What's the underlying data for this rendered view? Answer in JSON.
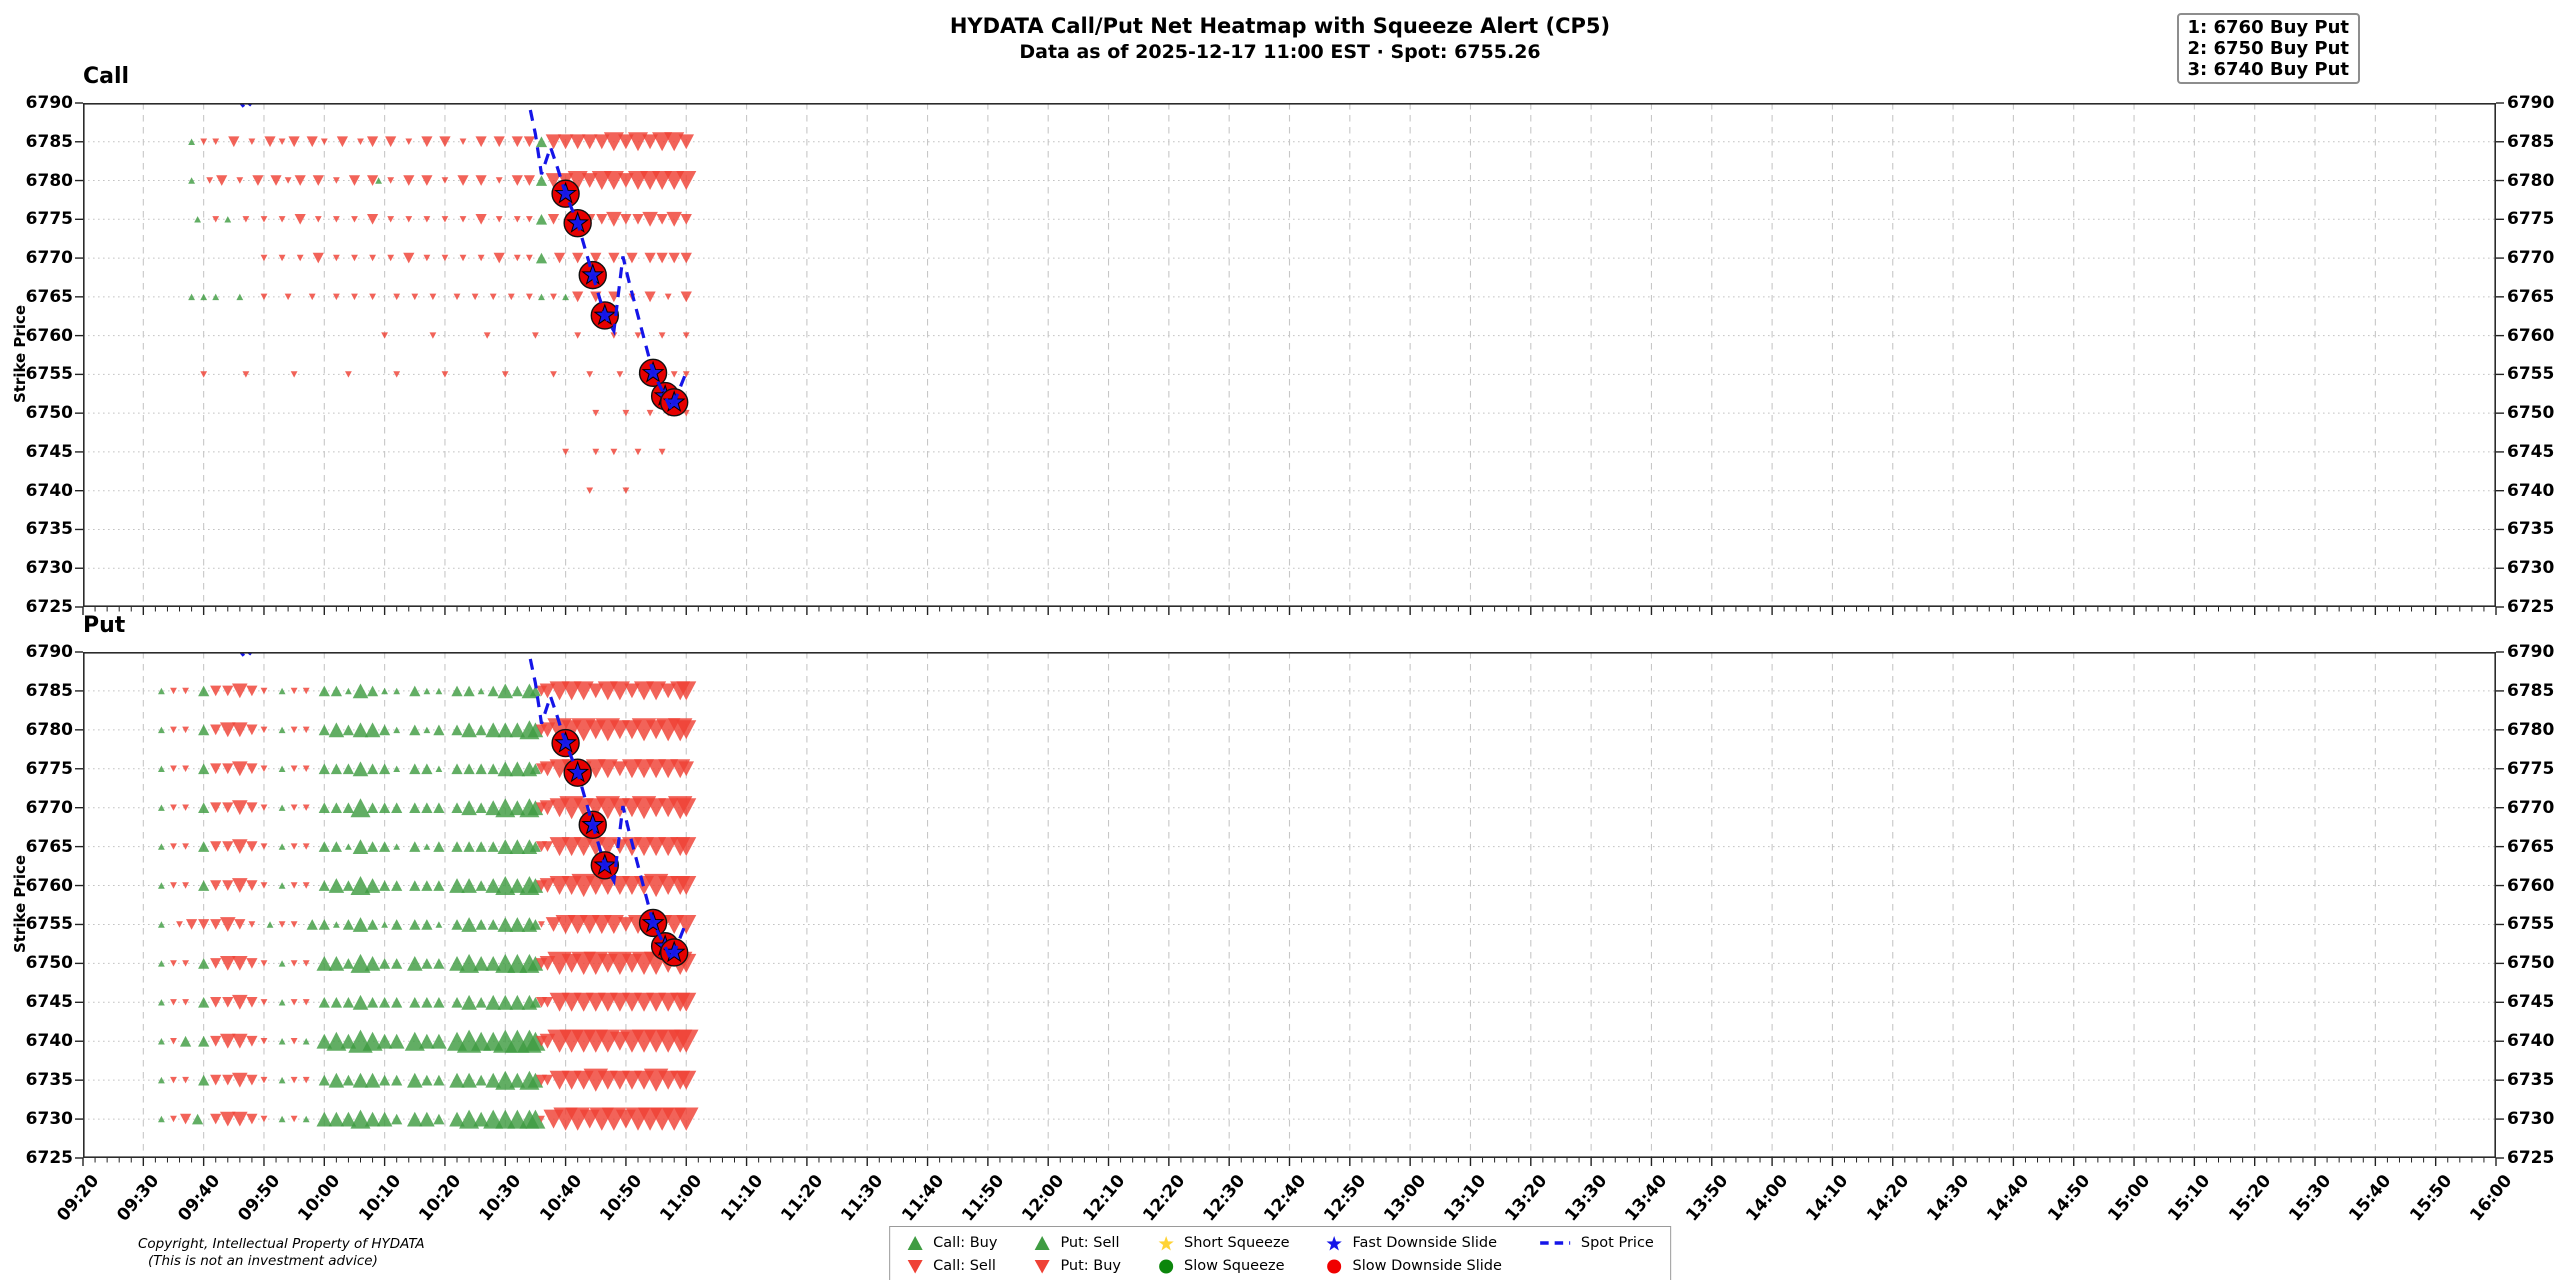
{
  "chart_data": {
    "type": "heatmap",
    "title_line1": "HYDATA Call/Put Net Heatmap with Squeeze Alert (CP5)",
    "title_line2": "Data as of 2025-12-17 11:00 EST · Spot: 6755.26",
    "alert_lines": [
      "1: 6760 Buy Put",
      "2: 6750 Buy Put",
      "3: 6740 Buy Put"
    ],
    "x_axis": {
      "start": "09:20",
      "end": "16:00",
      "major_step_min": 10,
      "minor_step_min": 2,
      "tick_labels": [
        "09:20",
        "09:30",
        "09:40",
        "09:50",
        "10:00",
        "10:10",
        "10:20",
        "10:30",
        "10:40",
        "10:50",
        "11:00",
        "11:10",
        "11:20",
        "11:30",
        "11:40",
        "11:50",
        "12:00",
        "12:10",
        "12:20",
        "12:30",
        "12:40",
        "12:50",
        "13:00",
        "13:10",
        "13:20",
        "13:30",
        "13:40",
        "13:50",
        "14:00",
        "14:10",
        "14:20",
        "14:30",
        "14:40",
        "14:50",
        "15:00",
        "15:10",
        "15:20",
        "15:30",
        "15:40",
        "15:50",
        "16:00"
      ]
    },
    "y_axis": {
      "label": "Strike Price",
      "min": 6725,
      "max": 6790,
      "tick_labels": [
        6790,
        6785,
        6780,
        6775,
        6770,
        6765,
        6760,
        6755,
        6750,
        6745,
        6740,
        6735,
        6730,
        6725
      ]
    },
    "time_unit": "minutes after 09:20",
    "marker_encoding": "minute:type:size — u = buy/accumulation green up-triangle, d = sell red down-triangle, size 1-5 relative",
    "panels": [
      {
        "title": "Call",
        "rows": [
          {
            "strike": 6785,
            "marks": "18:u:1,20:d:1,22:d:1,25:d:2,28:d:1,31:d:2,33:d:1,35:d:2,38:d:2,40:d:1,43:d:2,46:d:1,48:d:2,51:d:2,54:d:1,57:d:2,60:d:2,63:d:1,66:d:2,69:d:2,72:d:2,74:d:2,76:u:2,78:d:3,80:d:3,82:d:3,84:d:3,86:d:3,88:d:4,90:d:3,92:d:4,94:d:3,96:d:4,98:d:4,100:d:3"
          },
          {
            "strike": 6780,
            "marks": "18:u:1,21:d:1,23:d:2,26:d:1,29:d:2,32:d:2,34:d:1,36:d:2,39:d:2,42:d:1,45:d:2,48:d:2,49:u:1,51:d:1,54:d:2,57:d:2,60:d:1,63:d:2,66:d:2,69:d:1,72:d:2,74:d:2,76:u:2,78:d:3,80:d:3,82:d:4,84:d:3,86:d:4,88:d:4,90:d:3,92:d:4,94:d:4,96:d:4,98:d:4,100:d:4"
          },
          {
            "strike": 6775,
            "marks": "19:u:1,22:d:1,24:u:1,27:d:1,30:d:1,33:d:1,36:d:2,39:d:1,42:d:1,45:d:1,48:d:2,51:d:1,54:d:1,57:d:1,60:d:1,63:d:1,66:d:2,69:d:1,72:d:1,74:d:1,76:u:2,78:d:2,81:d:2,84:d:2,86:d:2,88:d:3,90:d:2,92:d:2,94:d:3,96:d:2,98:d:3,100:d:2"
          },
          {
            "strike": 6770,
            "marks": "30:d:1,33:d:1,36:d:1,39:d:2,42:d:1,45:d:1,48:d:1,51:d:1,54:d:2,57:d:1,60:d:1,63:d:1,66:d:1,69:d:2,72:d:1,74:d:1,76:u:2,79:d:2,82:d:2,85:d:2,88:d:2,91:d:2,94:d:2,96:d:2,98:d:2,100:d:2"
          },
          {
            "strike": 6765,
            "marks": "18:u:1,20:u:1,22:u:1,26:u:1,30:d:1,34:d:1,38:d:1,42:d:1,45:d:1,48:d:1,52:d:1,55:d:1,58:d:1,62:d:1,65:d:1,68:d:1,71:d:1,74:d:1,76:u:1,78:d:1,80:u:1,82:d:2,85:d:2,88:d:2,91:d:1,94:d:2,97:d:1,100:d:2"
          },
          {
            "strike": 6760,
            "marks": "50:d:1,58:d:1,67:d:1,75:d:1,82:d:1,88:d:1,92:d:1,96:d:1,100:d:1"
          },
          {
            "strike": 6755,
            "marks": "20:d:1,27:d:1,35:d:1,44:d:1,52:d:1,60:d:1,70:d:1,78:d:1,84:d:1,89:d:1,93:d:1,96:d:1,98:d:1,100:d:1"
          },
          {
            "strike": 6750,
            "marks": "85:d:1,90:d:1,94:d:1,97:d:1,100:d:1"
          },
          {
            "strike": 6745,
            "marks": "80:d:1,85:d:1,88:d:1,92:d:1,96:d:1"
          },
          {
            "strike": 6740,
            "marks": "84:d:1,90:d:1"
          }
        ]
      },
      {
        "title": "Put",
        "rows": [
          {
            "strike": 6785,
            "marks": "13:u:1,15:d:1,17:d:1,20:u:2,22:d:2,24:d:2,26:d:3,28:d:2,30:d:1,33:u:1,35:d:1,37:d:1,40:u:2,42:u:2,44:u:1,46:u:3,48:u:2,50:u:1,52:u:1,55:u:2,57:u:1,59:u:1,62:u:2,64:u:2,66:u:1,68:u:2,70:u:3,72:u:2,74:u:3,75:u:2,76:d:2,77:d:3,79:d:4,81:d:4,83:d:4,85:d:3,87:d:4,89:d:4,91:d:3,93:d:4,95:d:4,97:d:3,99:d:4,100:d:4"
          },
          {
            "strike": 6780,
            "marks": "13:u:1,15:d:1,17:d:1,20:u:2,22:d:2,24:d:3,26:d:3,28:d:2,30:d:1,33:u:1,35:d:1,37:d:1,40:u:2,42:u:3,44:u:2,46:u:3,48:u:3,50:u:2,52:u:1,55:u:2,57:u:1,59:u:2,62:u:2,64:u:3,66:u:2,68:u:3,70:u:3,72:u:3,74:u:4,75:u:3,76:d:2,77:d:3,79:d:5,81:d:4,83:d:5,85:d:4,87:d:5,89:d:4,91:d:4,93:d:5,95:d:4,97:d:5,99:d:5,100:d:4"
          },
          {
            "strike": 6775,
            "marks": "13:u:1,15:d:1,17:d:1,20:u:2,22:d:2,24:d:2,26:d:3,28:d:2,30:d:1,33:u:1,35:d:1,37:d:1,40:u:2,42:u:2,44:u:2,46:u:3,48:u:2,50:u:2,52:u:1,55:u:2,57:u:2,59:u:1,62:u:2,64:u:2,66:u:2,68:u:2,70:u:3,72:u:3,74:u:3,75:u:2,76:d:2,77:d:3,79:d:4,81:d:4,83:d:3,85:d:4,87:d:4,89:d:3,91:d:4,93:d:4,95:d:4,97:d:4,99:d:4,100:d:3"
          },
          {
            "strike": 6770,
            "marks": "13:u:1,15:d:1,17:d:1,20:u:2,22:d:2,24:d:2,26:d:3,28:d:2,30:d:1,33:u:1,35:d:1,37:d:1,40:u:2,42:u:2,44:u:2,46:u:4,48:u:2,50:u:2,52:u:2,55:u:2,57:u:2,59:u:2,62:u:2,64:u:3,66:u:2,68:u:3,70:u:4,72:u:3,74:u:4,75:u:3,76:d:2,77:d:3,79:d:4,81:d:5,83:d:4,85:d:4,87:d:5,89:d:4,91:d:4,93:d:5,95:d:4,97:d:4,99:d:5,100:d:4"
          },
          {
            "strike": 6765,
            "marks": "13:u:1,15:d:1,17:d:1,20:u:2,22:d:2,24:d:2,26:d:3,28:d:2,30:d:1,33:u:1,35:d:1,37:d:1,40:u:2,42:u:2,44:u:1,46:u:3,48:u:2,50:u:2,52:u:1,55:u:2,57:u:1,59:u:2,62:u:2,64:u:2,66:u:2,68:u:2,70:u:3,72:u:3,74:u:3,75:u:2,76:d:2,77:d:2,79:d:4,81:d:4,83:d:4,85:d:4,87:d:4,89:d:3,91:d:4,93:d:4,95:d:4,97:d:4,99:d:4,100:d:4"
          },
          {
            "strike": 6760,
            "marks": "13:u:1,15:d:1,17:d:1,20:u:2,22:d:2,24:d:2,26:d:3,28:d:2,30:d:1,33:u:1,35:d:1,37:d:1,40:u:2,42:u:3,44:u:2,46:u:4,48:u:3,50:u:2,52:u:2,55:u:2,57:u:2,59:u:2,62:u:3,64:u:3,66:u:2,68:u:3,70:u:4,72:u:3,74:u:4,75:u:3,76:d:2,77:d:3,79:d:4,81:d:4,83:d:5,85:d:4,87:d:4,89:d:4,91:d:4,93:d:4,95:d:5,97:d:4,99:d:4,100:d:4"
          },
          {
            "strike": 6755,
            "marks": "13:u:1,16:d:1,18:d:2,20:d:2,22:d:2,24:d:3,26:d:2,28:d:1,31:u:1,33:d:1,35:d:1,38:u:2,40:u:2,42:u:1,44:u:2,46:u:3,48:u:2,50:u:1,52:u:2,55:u:2,57:u:2,59:u:1,62:u:2,64:u:3,66:u:2,68:u:2,70:u:3,72:u:3,74:u:3,75:u:2,76:d:1,78:d:3,80:d:4,82:d:4,84:d:4,86:d:4,88:d:4,90:d:3,92:d:4,94:d:4,96:d:4,98:d:4,100:d:4"
          },
          {
            "strike": 6750,
            "marks": "13:u:1,15:d:1,17:d:1,20:u:2,22:d:2,24:d:3,26:d:3,28:d:2,30:d:1,33:u:1,35:d:1,37:d:1,40:u:3,42:u:3,44:u:2,46:u:4,48:u:3,50:u:2,52:u:2,55:u:3,57:u:2,59:u:2,62:u:3,64:u:4,66:u:3,68:u:3,70:u:4,72:u:4,74:u:4,75:u:3,76:d:2,77:d:3,79:d:5,81:d:4,83:d:5,85:d:5,87:d:4,89:d:5,91:d:4,93:d:5,95:d:5,97:d:4,99:d:5,100:d:4"
          },
          {
            "strike": 6745,
            "marks": "13:u:1,15:d:1,17:d:1,20:u:2,22:d:2,24:d:2,26:d:3,28:d:2,30:d:1,33:u:1,35:d:1,37:d:1,40:u:2,42:u:2,44:u:2,46:u:3,48:u:2,50:u:2,52:u:2,55:u:2,57:u:2,59:u:2,62:u:2,64:u:3,66:u:2,68:u:3,70:u:3,72:u:3,74:u:3,75:u:2,76:d:2,77:d:2,79:d:4,81:d:4,83:d:4,85:d:4,87:d:4,89:d:4,91:d:4,93:d:4,95:d:4,97:d:4,99:d:4,100:d:4"
          },
          {
            "strike": 6740,
            "marks": "13:u:1,15:d:1,17:u:2,20:u:2,22:d:2,24:d:3,26:d:3,28:d:2,30:d:1,33:u:1,35:d:1,37:u:1,40:u:3,42:u:4,44:u:3,46:u:5,48:u:4,50:u:3,52:u:3,55:u:4,57:u:3,59:u:3,62:u:4,64:u:5,66:u:4,68:u:4,70:u:5,72:u:5,74:u:5,75:u:4,76:d:2,77:d:3,79:d:5,81:d:5,83:d:5,85:d:5,87:d:5,89:d:4,91:d:5,93:d:5,95:d:5,97:d:5,99:d:5,100:d:5"
          },
          {
            "strike": 6735,
            "marks": "13:u:1,15:d:1,17:d:1,20:u:2,22:d:2,24:d:2,26:d:3,28:d:2,30:d:1,33:u:1,35:d:1,37:d:1,40:u:2,42:u:3,44:u:2,46:u:3,48:u:3,50:u:2,52:u:2,55:u:3,57:u:2,59:u:2,62:u:3,64:u:3,66:u:2,68:u:3,70:u:4,72:u:3,74:u:4,75:u:3,76:d:2,77:d:2,79:d:4,81:d:4,83:d:4,85:d:5,87:d:4,89:d:4,91:d:4,93:d:4,95:d:5,97:d:4,99:d:4,100:d:4"
          },
          {
            "strike": 6730,
            "marks": "13:u:1,15:d:1,17:d:2,19:u:2,22:d:2,24:d:3,26:d:3,28:d:2,30:d:1,33:u:1,35:d:1,37:u:1,40:u:3,42:u:3,44:u:3,46:u:4,48:u:3,50:u:3,52:u:2,55:u:3,57:u:3,59:u:2,62:u:3,64:u:4,66:u:3,68:u:4,70:u:4,72:u:4,74:u:4,75:u:4,76:d:1,78:d:4,80:d:5,82:d:5,84:d:4,86:d:5,88:d:5,90:d:4,92:d:5,94:d:5,96:d:5,98:d:5,100:d:5"
          }
        ]
      }
    ],
    "spot_price_line": {
      "label": "Spot Price",
      "final_value": 6755.26,
      "segments": [
        [
          [
            25.5,
            6790.6
          ],
          [
            27,
            6789.2
          ],
          [
            28.5,
            6790.6
          ]
        ],
        [
          [
            73.5,
            6791.5
          ],
          [
            75,
            6786
          ],
          [
            76,
            6780.8
          ],
          [
            77.5,
            6784.3
          ],
          [
            78.5,
            6782
          ],
          [
            80,
            6778.3
          ],
          [
            82,
            6774.5
          ],
          [
            84.5,
            6767.8
          ],
          [
            86.5,
            6762.6
          ],
          [
            88,
            6760.6
          ],
          [
            89.5,
            6770.2
          ],
          [
            90.5,
            6767
          ],
          [
            94.5,
            6755.2
          ],
          [
            96.5,
            6752.2
          ],
          [
            97.5,
            6750.4
          ],
          [
            98,
            6751.4
          ],
          [
            100,
            6755.3
          ]
        ]
      ]
    },
    "downside_slide_markers": {
      "fast_label": "Fast Downside Slide",
      "slow_label": "Slow Downside Slide",
      "points": [
        [
          80,
          6778.3
        ],
        [
          82,
          6774.5
        ],
        [
          84.5,
          6767.8
        ],
        [
          86.5,
          6762.6
        ],
        [
          94.5,
          6755.2
        ],
        [
          96.5,
          6752.2
        ],
        [
          98,
          6751.4
        ]
      ]
    },
    "legend": {
      "rows": [
        [
          {
            "sym": "tri-up-green",
            "label": "Call: Buy"
          },
          {
            "sym": "tri-up-green",
            "label": "Put: Sell"
          },
          {
            "sym": "star-yellow",
            "label": "Short Squeeze"
          },
          {
            "sym": "star-blue",
            "label": "Fast Downside Slide"
          },
          {
            "sym": "dash-blue",
            "label": "Spot Price"
          }
        ],
        [
          {
            "sym": "tri-down-red",
            "label": "Call: Sell"
          },
          {
            "sym": "tri-down-red",
            "label": "Put: Buy"
          },
          {
            "sym": "circle-green",
            "label": "Slow Squeeze"
          },
          {
            "sym": "circle-red",
            "label": "Slow Downside Slide"
          },
          null
        ]
      ]
    },
    "footer_line1": "Copyright, Intellectual Property of HYDATA",
    "footer_line2": "(This is not an investment advice)",
    "colors": {
      "buy_green": "#3f9c42",
      "sell_red": "#ef4135",
      "spot_blue": "#1515e8",
      "slide_circle_red": "#e60000",
      "slide_star_blue": "#1a1ae6",
      "short_squeeze_yellow": "#ffd335",
      "slow_squeeze_green": "#0c860c",
      "grid": "#c7c7c7",
      "spine": "#2b2b2b"
    }
  }
}
